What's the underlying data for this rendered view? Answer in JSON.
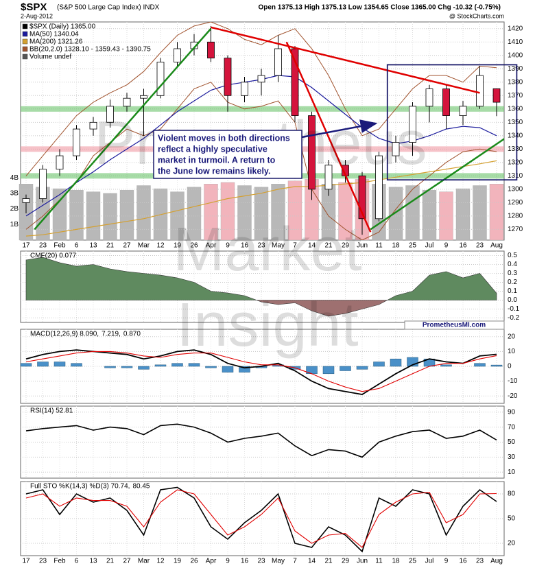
{
  "page": {
    "symbol": "$SPX",
    "name": "(S&P 500 Large Cap Index) INDX",
    "date": "2-Aug-2012",
    "quote": "Open 1375.13 High 1375.13 Low 1354.65 Close 1365.00 Chg -10.32 (-0.75%)",
    "credit": "@ StockCharts.com",
    "site": "PrometheusMI.com",
    "watermark": [
      "Prometheus",
      "Market",
      "Insight"
    ]
  },
  "chart_data": [
    {
      "type": "candlestick",
      "title": "$SPX (Daily) 1365.00",
      "categories": [
        "17",
        "23",
        "Feb",
        "6",
        "13",
        "21",
        "27",
        "Mar",
        "12",
        "19",
        "26",
        "Apr",
        "9",
        "16",
        "23",
        "May",
        "7",
        "14",
        "21",
        "29",
        "Jun",
        "11",
        "18",
        "25",
        "Jul",
        "9",
        "16",
        "23",
        "Aug"
      ],
      "open": [
        1290,
        1293,
        1315,
        1325,
        1345,
        1350,
        1362,
        1368,
        1370,
        1395,
        1405,
        1410,
        1398,
        1370,
        1380,
        1385,
        1405,
        1355,
        1300,
        1318,
        1310,
        1278,
        1325,
        1335,
        1362,
        1375,
        1355,
        1362,
        1375.13
      ],
      "high": [
        1296,
        1318,
        1330,
        1348,
        1354,
        1367,
        1372,
        1375,
        1398,
        1410,
        1416,
        1422,
        1400,
        1384,
        1390,
        1415,
        1407,
        1358,
        1322,
        1322,
        1313,
        1328,
        1340,
        1365,
        1378,
        1378,
        1366,
        1392,
        1375.13
      ],
      "low": [
        1282,
        1290,
        1310,
        1322,
        1340,
        1346,
        1358,
        1340,
        1368,
        1392,
        1400,
        1395,
        1358,
        1365,
        1370,
        1380,
        1350,
        1292,
        1295,
        1305,
        1266,
        1276,
        1320,
        1325,
        1350,
        1345,
        1348,
        1360,
        1354.65
      ],
      "close": [
        1293,
        1315,
        1325,
        1345,
        1350,
        1362,
        1368,
        1370,
        1395,
        1405,
        1410,
        1398,
        1370,
        1380,
        1385,
        1405,
        1355,
        1300,
        1318,
        1310,
        1278,
        1325,
        1335,
        1362,
        1375,
        1355,
        1362,
        1385,
        1365
      ],
      "colors": {
        "up": "#ffffff",
        "down": "#d4143c"
      },
      "overlays": [
        {
          "name": "MA(50) 1340.04",
          "color": "#1a1a9c",
          "values": [
            1280,
            1288,
            1296,
            1305,
            1313,
            1322,
            1330,
            1338,
            1348,
            1358,
            1366,
            1374,
            1378,
            1380,
            1382,
            1385,
            1384,
            1376,
            1366,
            1356,
            1346,
            1338,
            1334,
            1336,
            1340,
            1345,
            1347,
            1346,
            1340.04
          ]
        },
        {
          "name": "MA(200) 1321.26",
          "color": "#d4a030",
          "values": [
            1265,
            1266,
            1268,
            1270,
            1272,
            1274,
            1276,
            1278,
            1281,
            1284,
            1287,
            1290,
            1293,
            1295,
            1297,
            1300,
            1302,
            1302,
            1303,
            1304,
            1305,
            1307,
            1309,
            1311,
            1313,
            1315,
            1317,
            1319,
            1321.26
          ]
        }
      ],
      "bollinger": {
        "name": "BB(20,2.0) 1328.10 - 1359.43 - 1390.75",
        "color": "#a0522d",
        "upper": [
          1310,
          1325,
          1340,
          1355,
          1365,
          1372,
          1378,
          1388,
          1402,
          1415,
          1422,
          1425,
          1420,
          1412,
          1408,
          1415,
          1420,
          1405,
          1385,
          1360,
          1340,
          1345,
          1360,
          1375,
          1385,
          1385,
          1380,
          1392,
          1390.75
        ],
        "lower": [
          1270,
          1280,
          1292,
          1305,
          1325,
          1335,
          1345,
          1340,
          1345,
          1360,
          1375,
          1380,
          1365,
          1360,
          1362,
          1366,
          1350,
          1300,
          1280,
          1270,
          1262,
          1268,
          1285,
          1300,
          1310,
          1320,
          1328,
          1330,
          1328.1
        ]
      },
      "volume": {
        "name": "Volume undef",
        "values": [
          3600000000,
          3400000000,
          3300000000,
          3200000000,
          3100000000,
          3000000000,
          3200000000,
          3500000000,
          3300000000,
          3100000000,
          3400000000,
          3600000000,
          3700000000,
          3500000000,
          3400000000,
          3600000000,
          3800000000,
          3900000000,
          3600000000,
          3700000000,
          3900000000,
          3600000000,
          3400000000,
          3500000000,
          3200000000,
          3100000000,
          3300000000,
          3500000000,
          3600000000
        ],
        "ylim": [
          0,
          14000000000
        ],
        "yticks": [
          {
            "value": 1000000000,
            "label": "1B"
          },
          {
            "value": 2000000000,
            "label": "2B"
          },
          {
            "value": 3000000000,
            "label": "3B"
          },
          {
            "value": 4000000000,
            "label": "4B"
          }
        ],
        "colors": {
          "up": "#b8b8b8",
          "down": "#f2b4bc"
        }
      },
      "ylim": [
        1262,
        1425
      ],
      "yticks": [
        1270,
        1280,
        1290,
        1300,
        1310,
        1320,
        1330,
        1340,
        1350,
        1360,
        1370,
        1380,
        1390,
        1400,
        1410,
        1420
      ],
      "bands": [
        {
          "y": 1360,
          "color": "#6cc46c"
        },
        {
          "y": 1330,
          "color": "#f09aa4"
        },
        {
          "y": 1310,
          "color": "#6cc46c"
        }
      ],
      "trendlines": [
        {
          "color": "#1a8a1a",
          "x": [
            0.5,
            11
          ],
          "y": [
            1270,
            1420
          ]
        },
        {
          "color": "#e00000",
          "x": [
            11,
            27
          ],
          "y": [
            1421,
            1372
          ]
        },
        {
          "color": "#e00000",
          "x": [
            15.5,
            20.5
          ],
          "y": [
            1410,
            1268
          ]
        },
        {
          "color": "#1a8a1a",
          "x": [
            20.5,
            29.2
          ],
          "y": [
            1270,
            1344
          ]
        }
      ],
      "box": {
        "color": "#1a1a6a",
        "x": [
          21.5,
          29.2
        ],
        "y": [
          1307,
          1393
        ]
      },
      "annotation": [
        "Violent moves in both directions",
        "reflect a highly speculative",
        "market in turmoil. A return to",
        "the June low remains likely."
      ]
    },
    {
      "type": "area",
      "title": "CMF(20) 0.077",
      "values": [
        0.45,
        0.48,
        0.42,
        0.38,
        0.4,
        0.35,
        0.32,
        0.3,
        0.28,
        0.25,
        0.2,
        0.1,
        0.08,
        0.05,
        -0.02,
        -0.05,
        -0.03,
        -0.12,
        -0.18,
        -0.15,
        -0.1,
        -0.05,
        0.05,
        0.1,
        0.28,
        0.32,
        0.25,
        0.3,
        0.077
      ],
      "colors": {
        "positive": "#5f8a5f",
        "negative": "#9e7070"
      },
      "ylim": [
        -0.25,
        0.55
      ],
      "yticks": [
        -0.2,
        -0.1,
        {
          "value": 0,
          "label": "0.0"
        },
        0.1,
        0.2,
        0.3,
        0.4,
        0.5
      ]
    },
    {
      "type": "combo",
      "series": [
        {
          "name": "MACD(12,26,9) 8.090,",
          "color": "#000000",
          "values": [
            5,
            8,
            10,
            11,
            10,
            9,
            8,
            5,
            7,
            10,
            11,
            8,
            2,
            -1,
            0,
            2,
            -3,
            -10,
            -15,
            -17,
            -19,
            -12,
            -5,
            1,
            5,
            3,
            2,
            7,
            8.09
          ]
        },
        {
          "name": "7.219,",
          "color": "#e00000",
          "values": [
            3,
            5,
            7,
            9,
            10,
            10,
            9,
            7,
            6,
            8,
            9,
            9,
            6,
            3,
            1,
            1,
            -1,
            -5,
            -10,
            -14,
            -17,
            -15,
            -10,
            -5,
            0,
            2,
            2,
            5,
            7.219
          ]
        },
        {
          "name": "0.870",
          "color": "#4a90c8",
          "kind": "bar",
          "values": [
            2,
            3,
            3,
            2,
            0,
            -1,
            -1,
            -2,
            1,
            2,
            2,
            -1,
            -4,
            -4,
            -1,
            1,
            -2,
            -5,
            -5,
            -3,
            -2,
            3,
            5,
            6,
            5,
            1,
            0,
            2,
            0.87
          ]
        }
      ],
      "ylim": [
        -25,
        25
      ],
      "yticks": [
        -20,
        -10,
        0,
        10,
        20
      ]
    },
    {
      "type": "line",
      "series": [
        {
          "name": "RSI(14) 52.81",
          "color": "#000000",
          "values": [
            65,
            68,
            70,
            72,
            66,
            70,
            68,
            60,
            72,
            74,
            70,
            62,
            50,
            55,
            58,
            62,
            45,
            32,
            40,
            38,
            30,
            50,
            58,
            64,
            66,
            55,
            58,
            66,
            52.81
          ]
        }
      ],
      "ylim": [
        2,
        98
      ],
      "yticks": [
        10,
        30,
        50,
        70,
        90
      ]
    },
    {
      "type": "line",
      "categories": [
        "17",
        "23",
        "Feb",
        "6",
        "13",
        "21",
        "27",
        "Mar",
        "12",
        "19",
        "26",
        "Apr",
        "9",
        "16",
        "23",
        "May",
        "7",
        "14",
        "21",
        "29",
        "Jun",
        "11",
        "18",
        "25",
        "Jul",
        "9",
        "16",
        "23",
        "Aug"
      ],
      "series": [
        {
          "name": "Full STO %K(14,3) %D(3) 70.74,",
          "color": "#000000",
          "values": [
            80,
            85,
            55,
            80,
            70,
            75,
            60,
            30,
            85,
            88,
            75,
            40,
            25,
            45,
            60,
            80,
            20,
            15,
            40,
            30,
            10,
            75,
            65,
            85,
            80,
            30,
            65,
            85,
            70.74
          ]
        },
        {
          "name": "80.45",
          "color": "#e00000",
          "values": [
            75,
            80,
            65,
            75,
            72,
            72,
            65,
            40,
            70,
            85,
            80,
            55,
            30,
            40,
            55,
            75,
            35,
            20,
            30,
            32,
            15,
            55,
            70,
            80,
            82,
            45,
            55,
            80,
            80.45
          ]
        }
      ],
      "ylim": [
        5,
        95
      ],
      "yticks": [
        20,
        50,
        80
      ]
    }
  ]
}
